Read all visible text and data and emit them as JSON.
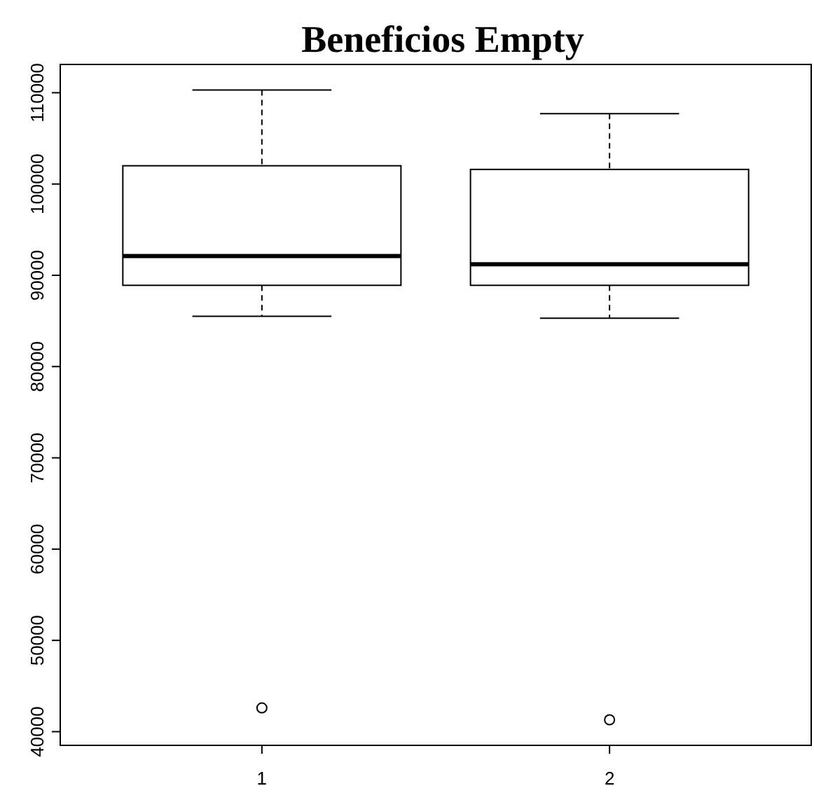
{
  "chart_data": {
    "type": "box",
    "title": "Beneficios Empty",
    "categories": [
      "1",
      "2"
    ],
    "boxes": [
      {
        "low": 85500,
        "q1": 88900,
        "median": 92100,
        "q3": 102000,
        "high": 110300,
        "outliers": [
          42600
        ]
      },
      {
        "low": 85300,
        "q1": 88900,
        "median": 91200,
        "q3": 101600,
        "high": 107700,
        "outliers": [
          41300
        ]
      }
    ],
    "ylim": [
      38500,
      113100
    ],
    "yticks": [
      40000,
      50000,
      60000,
      70000,
      80000,
      90000,
      100000,
      110000
    ]
  }
}
